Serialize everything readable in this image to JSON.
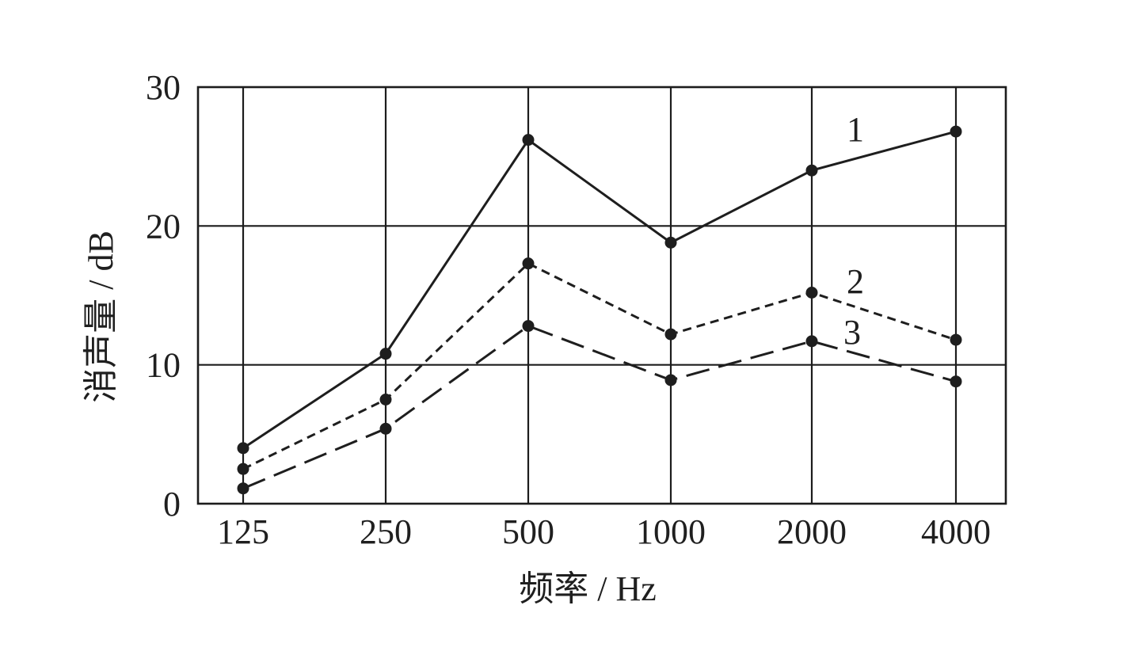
{
  "chart_data": {
    "type": "line",
    "categories": [
      "125",
      "250",
      "500",
      "1000",
      "2000",
      "4000"
    ],
    "xlabel": "频率 / Hz",
    "ylabel": "消声量 / dB",
    "ylim": [
      0,
      30
    ],
    "yticks": [
      "0",
      "10",
      "20",
      "30"
    ],
    "grid": true,
    "series": [
      {
        "name": "1",
        "style": "solid",
        "values": [
          4,
          10.8,
          26.2,
          18.8,
          24,
          26.8
        ]
      },
      {
        "name": "2",
        "style": "short-dash",
        "values": [
          2.5,
          7.5,
          17.3,
          12.2,
          15.2,
          11.8
        ]
      },
      {
        "name": "3",
        "style": "long-dash",
        "values": [
          1.1,
          5.4,
          12.8,
          8.9,
          11.7,
          8.8
        ]
      }
    ]
  }
}
